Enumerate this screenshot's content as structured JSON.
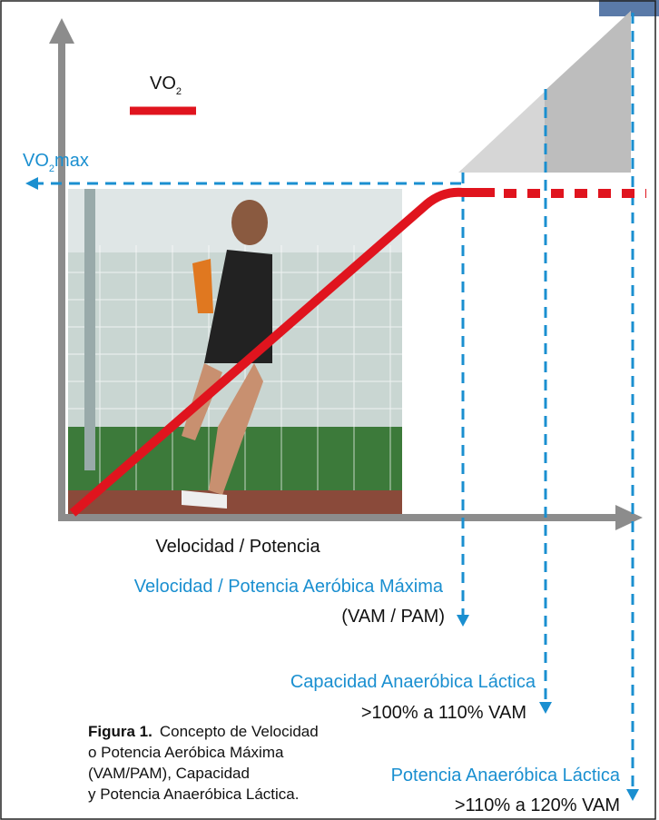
{
  "legend": {
    "label": {
      "main": "VO",
      "sub": "2"
    }
  },
  "y_axis": {
    "marker": {
      "main": "VO",
      "sub": "2",
      "suffix": "max"
    }
  },
  "x_axis": {
    "label": "Velocidad / Potencia"
  },
  "thresholds": [
    {
      "title": "Velocidad / Potencia Aeróbica Máxima",
      "detail": "(VAM / PAM)"
    },
    {
      "title": "Capacidad Anaeróbica Láctica",
      "detail": ">100% a 110% VAM"
    },
    {
      "title": "Potencia Anaeróbica Láctica",
      "detail": ">110% a 120% VAM"
    }
  ],
  "caption": {
    "label": "Figura 1.",
    "lines": [
      "Concepto de Velocidad",
      "o Potencia Aeróbica Máxima",
      "(VAM/PAM), Capacidad",
      "y Potencia Anaeróbica Láctica."
    ]
  }
}
